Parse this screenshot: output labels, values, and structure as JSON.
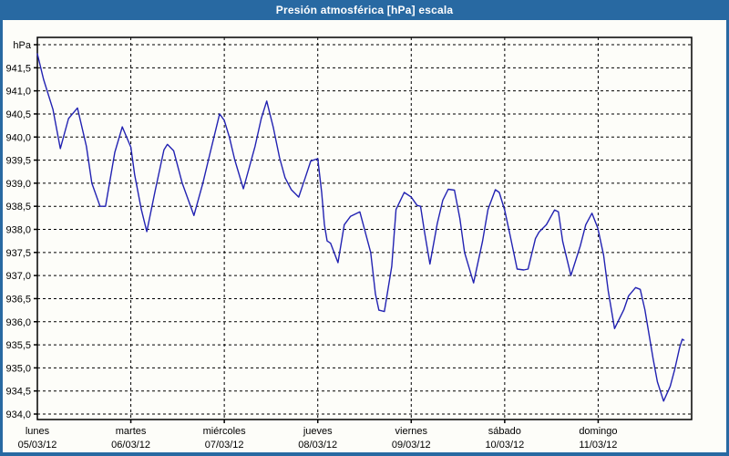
{
  "window": {
    "title": "Presión atmosférica [hPa] escala"
  },
  "colors": {
    "titlebar": "#2869a2",
    "window_border": "#2869a2",
    "background": "#fdfdf9",
    "grid": "#000000",
    "axis": "#000000",
    "line": "#2222b2",
    "label_text": "#000000",
    "title_text": "#ffffff"
  },
  "chart_data": {
    "type": "line",
    "title": "Presión atmosférica [hPa] escala",
    "ylabel": "hPa",
    "xlabel": "",
    "grid": true,
    "legend_position": "none",
    "y_axis": {
      "unit_label": "hPa",
      "grid_top": 942.0,
      "grid_bottom": 934.0,
      "step": 0.5,
      "tick_labels_top_to_bottom": [
        "hPa",
        "941,5",
        "941,0",
        "940,5",
        "940,0",
        "939,5",
        "939,0",
        "938,5",
        "938,0",
        "937,5",
        "937,0",
        "936,5",
        "936,0",
        "935,5",
        "935,0",
        "934,5",
        "934,0"
      ]
    },
    "x_axis": {
      "hours_total": 168,
      "hours_per_day": 24,
      "days": [
        {
          "name": "lunes",
          "date": "05/03/12"
        },
        {
          "name": "martes",
          "date": "06/03/12"
        },
        {
          "name": "miércoles",
          "date": "07/03/12"
        },
        {
          "name": "jueves",
          "date": "08/03/12"
        },
        {
          "name": "viernes",
          "date": "09/03/12"
        },
        {
          "name": "sábado",
          "date": "10/03/12"
        },
        {
          "name": "domingo",
          "date": "11/03/12"
        }
      ]
    },
    "series": [
      {
        "name": "presión atmosférica",
        "color": "#2222b2",
        "points_hours_vs_hpa": [
          [
            0,
            941.8
          ],
          [
            1.6,
            941.25
          ],
          [
            4,
            940.6
          ],
          [
            5.9,
            939.75
          ],
          [
            8,
            940.4
          ],
          [
            10.3,
            940.63
          ],
          [
            12.6,
            939.8
          ],
          [
            14,
            939.0
          ],
          [
            16.1,
            938.5
          ],
          [
            17.5,
            938.5
          ],
          [
            19.9,
            939.67
          ],
          [
            21.8,
            940.22
          ],
          [
            24,
            939.78
          ],
          [
            25,
            939.18
          ],
          [
            26.7,
            938.43
          ],
          [
            28.1,
            937.95
          ],
          [
            30.2,
            938.82
          ],
          [
            32.5,
            939.72
          ],
          [
            33.4,
            939.84
          ],
          [
            35,
            939.7
          ],
          [
            37.2,
            939.0
          ],
          [
            40.2,
            938.3
          ],
          [
            42.5,
            939.0
          ],
          [
            44.2,
            939.6
          ],
          [
            46.8,
            940.5
          ],
          [
            48,
            940.36
          ],
          [
            49.3,
            940.0
          ],
          [
            50.7,
            939.5
          ],
          [
            52.9,
            938.88
          ],
          [
            55.9,
            939.8
          ],
          [
            57.5,
            940.4
          ],
          [
            58.9,
            940.78
          ],
          [
            60.6,
            940.2
          ],
          [
            62.2,
            939.55
          ],
          [
            63.6,
            939.12
          ],
          [
            65.2,
            938.86
          ],
          [
            67.1,
            938.7
          ],
          [
            68.8,
            939.12
          ],
          [
            70.2,
            939.48
          ],
          [
            72,
            939.53
          ],
          [
            73,
            938.8
          ],
          [
            73.7,
            938.1
          ],
          [
            74.4,
            937.75
          ],
          [
            75.3,
            937.7
          ],
          [
            77.2,
            937.28
          ],
          [
            78.8,
            938.1
          ],
          [
            80.4,
            938.28
          ],
          [
            82.8,
            938.38
          ],
          [
            85.6,
            937.5
          ],
          [
            86.8,
            936.6
          ],
          [
            87.7,
            936.25
          ],
          [
            89.1,
            936.22
          ],
          [
            91,
            937.2
          ],
          [
            92.1,
            938.43
          ],
          [
            94.2,
            938.8
          ],
          [
            96,
            938.7
          ],
          [
            97.5,
            938.52
          ],
          [
            98.4,
            938.5
          ],
          [
            99.4,
            937.95
          ],
          [
            100.8,
            937.25
          ],
          [
            102.7,
            938.13
          ],
          [
            104.1,
            938.63
          ],
          [
            105.5,
            938.87
          ],
          [
            107.1,
            938.85
          ],
          [
            108.5,
            938.23
          ],
          [
            109.7,
            937.5
          ],
          [
            112,
            936.84
          ],
          [
            114.3,
            937.74
          ],
          [
            115.7,
            938.43
          ],
          [
            117.6,
            938.86
          ],
          [
            118.6,
            938.8
          ],
          [
            120,
            938.41
          ],
          [
            121.4,
            937.87
          ],
          [
            123.2,
            937.14
          ],
          [
            124.9,
            937.12
          ],
          [
            126,
            937.14
          ],
          [
            127.9,
            937.8
          ],
          [
            128.8,
            937.94
          ],
          [
            130.7,
            938.1
          ],
          [
            132.8,
            938.42
          ],
          [
            133.8,
            938.38
          ],
          [
            134.9,
            937.74
          ],
          [
            137,
            937.0
          ],
          [
            139.4,
            937.64
          ],
          [
            140.8,
            938.1
          ],
          [
            142.4,
            938.35
          ],
          [
            143.9,
            938.03
          ],
          [
            145.4,
            937.44
          ],
          [
            146.6,
            936.66
          ],
          [
            148.2,
            935.85
          ],
          [
            150.6,
            936.26
          ],
          [
            151.8,
            936.56
          ],
          [
            153.6,
            936.74
          ],
          [
            154.8,
            936.7
          ],
          [
            156,
            936.26
          ],
          [
            158.1,
            935.2
          ],
          [
            159.2,
            934.7
          ],
          [
            160.8,
            934.28
          ],
          [
            162.5,
            934.6
          ],
          [
            163.7,
            934.98
          ],
          [
            164.9,
            935.44
          ],
          [
            165.6,
            935.62
          ],
          [
            166,
            935.6
          ]
        ]
      }
    ]
  }
}
